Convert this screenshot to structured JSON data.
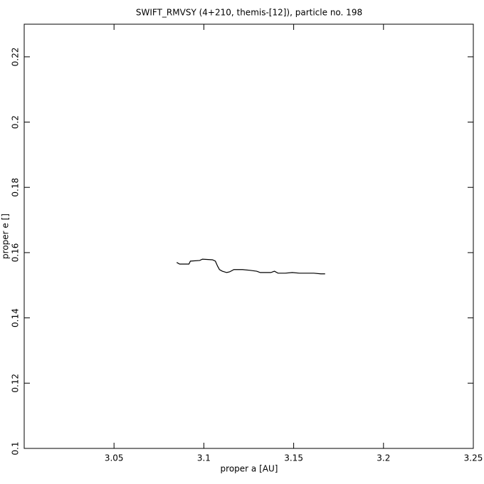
{
  "chart_data": {
    "type": "line",
    "title": "SWIFT_RMVSY (4+210, themis-[12]), particle no. 198",
    "x_label": "proper a [AU]",
    "y_label": "proper e []",
    "xlim": [
      3.0,
      3.25
    ],
    "ylim": [
      0.1,
      0.23
    ],
    "xticks": [
      3.05,
      3.1,
      3.15,
      3.2,
      3.25
    ],
    "yticks": [
      0.1,
      0.12,
      0.14,
      0.16,
      0.18,
      0.2,
      0.22
    ],
    "grid": false,
    "series": [
      {
        "color": "#000000",
        "x": [
          3.0849,
          3.0865,
          3.0917,
          3.0925,
          3.0977,
          3.0992,
          3.1048,
          3.1064,
          3.1076,
          3.1087,
          3.1103,
          3.1127,
          3.1143,
          3.1167,
          3.1215,
          3.1254,
          3.1294,
          3.1314,
          3.1342,
          3.1373,
          3.1393,
          3.1413,
          3.1453,
          3.1492,
          3.1532,
          3.1572,
          3.1612,
          3.1651,
          3.1675
        ],
        "values": [
          0.157,
          0.1565,
          0.1565,
          0.1574,
          0.1576,
          0.158,
          0.1578,
          0.1574,
          0.1559,
          0.1548,
          0.1543,
          0.1539,
          0.1541,
          0.1548,
          0.1548,
          0.1546,
          0.1543,
          0.1539,
          0.1539,
          0.1539,
          0.1543,
          0.1537,
          0.1537,
          0.1539,
          0.1537,
          0.1537,
          0.1537,
          0.1535,
          0.1535
        ]
      }
    ]
  }
}
